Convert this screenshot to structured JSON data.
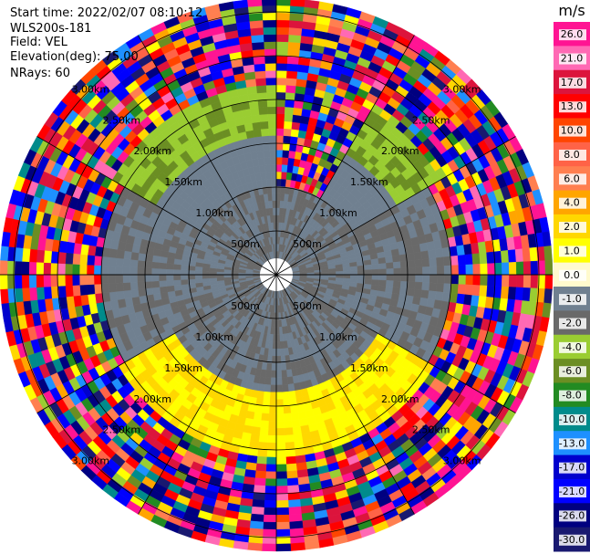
{
  "info": {
    "start_time": "Start time: 2022/02/07 08:10:12",
    "instrument": "WLS200s-181",
    "field": "Field: VEL",
    "elevation": "Elevation(deg): 75.00",
    "nrays": "NRays: 60"
  },
  "chart_data": {
    "type": "heatmap",
    "projection": "polar (PPI scan)",
    "field": "VEL",
    "unit": "m/s",
    "range_rings_m": [
      500,
      1000,
      1500,
      2000,
      2500,
      3000
    ],
    "range_ring_labels": [
      "500m",
      "1.00km",
      "1.50km",
      "2.00km",
      "2.50km",
      "3.00km"
    ],
    "azimuth_lines": 12,
    "colorbar": {
      "unit": "m/s",
      "ticks": [
        "26.0",
        "21.0",
        "17.0",
        "13.0",
        "10.0",
        "8.0",
        "6.0",
        "4.0",
        "2.0",
        "1.0",
        "0.0",
        "-1.0",
        "-2.0",
        "-4.0",
        "-6.0",
        "-8.0",
        "-10.0",
        "-13.0",
        "-17.0",
        "-21.0",
        "-26.0",
        "-30.0"
      ],
      "colors": [
        "#ff1493",
        "#ff69b4",
        "#dc143c",
        "#ff0000",
        "#ff4500",
        "#ff6347",
        "#ff7f50",
        "#ffa500",
        "#ffd700",
        "#ffff00",
        "#fffacd",
        "#708090",
        "#696969",
        "#9acd32",
        "#6b8e23",
        "#228b22",
        "#008b8b",
        "#1e90ff",
        "#0000cd",
        "#0000ff",
        "#000080",
        "#191970"
      ]
    },
    "sector_summary": {
      "north_inner": "-2.0 to -4.0",
      "south_inner": "2.0 to 6.0",
      "east_west_inner": "0.0 to -1.0",
      "outer": "mixed -30.0 to 26.0"
    }
  }
}
